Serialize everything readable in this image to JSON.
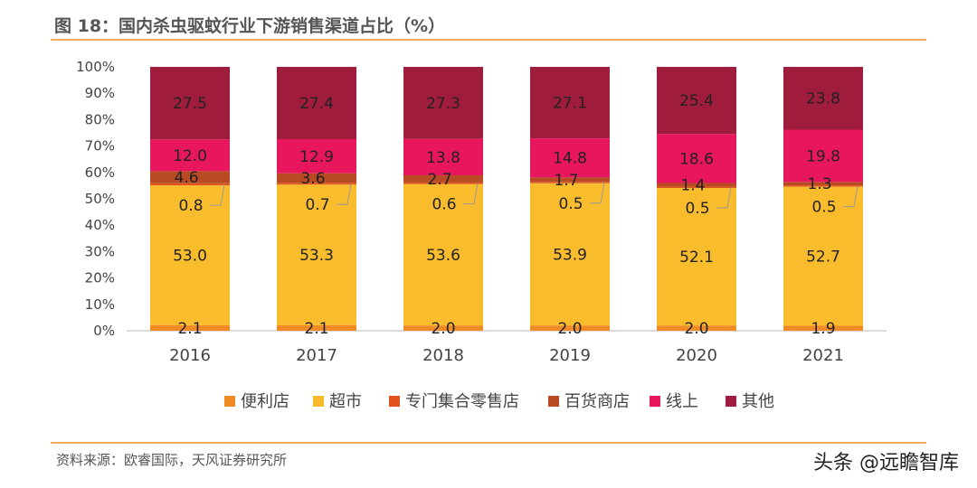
{
  "header": {
    "title": "图 18：国内杀虫驱蚊行业下游销售渠道占比（%）"
  },
  "footer": {
    "source": "资料来源：欧睿国际，天风证券研究所",
    "watermark": "头条 @远瞻智库"
  },
  "colors": {
    "便利店": "#F08A24",
    "超市": "#F9BC2C",
    "专门集合零售店": "#E0531C",
    "百货商店": "#B84A24",
    "线上": "#E8175D",
    "其他": "#A01C3C"
  },
  "chart_data": {
    "type": "bar",
    "stacked": true,
    "categories": [
      "2016",
      "2017",
      "2018",
      "2019",
      "2020",
      "2021"
    ],
    "ylim": [
      0,
      100
    ],
    "yticks": [
      "0%",
      "10%",
      "20%",
      "30%",
      "40%",
      "50%",
      "60%",
      "70%",
      "80%",
      "90%",
      "100%"
    ],
    "legend_position": "bottom",
    "series": [
      {
        "name": "便利店",
        "values": [
          2.1,
          2.1,
          2.0,
          2.0,
          2.0,
          1.9
        ]
      },
      {
        "name": "超市",
        "values": [
          53.0,
          53.3,
          53.6,
          53.9,
          52.1,
          52.7
        ]
      },
      {
        "name": "专门集合零售店",
        "values": [
          0.8,
          0.7,
          0.6,
          0.5,
          0.5,
          0.5
        ]
      },
      {
        "name": "百货商店",
        "values": [
          4.6,
          3.6,
          2.7,
          1.7,
          1.4,
          1.3
        ]
      },
      {
        "name": "线上",
        "values": [
          12.0,
          12.9,
          13.8,
          14.8,
          18.6,
          19.8
        ]
      },
      {
        "name": "其他",
        "values": [
          27.5,
          27.4,
          27.3,
          27.1,
          25.4,
          23.8
        ]
      }
    ],
    "data_labels": [
      [
        "2.1",
        "53.0",
        "0.8",
        "4.6",
        "12.0",
        "27.5"
      ],
      [
        "2.1",
        "53.3",
        "0.7",
        "3.6",
        "12.9",
        "27.4"
      ],
      [
        "2.0",
        "53.6",
        "0.6",
        "2.7",
        "13.8",
        "27.3"
      ],
      [
        "2.0",
        "53.9",
        "0.5",
        "1.7",
        "14.8",
        "27.1"
      ],
      [
        "2.0",
        "52.1",
        "0.5",
        "1.4",
        "18.6",
        "25.4"
      ],
      [
        "1.9",
        "52.7",
        "0.5",
        "1.3",
        "19.8",
        "23.8"
      ]
    ]
  }
}
